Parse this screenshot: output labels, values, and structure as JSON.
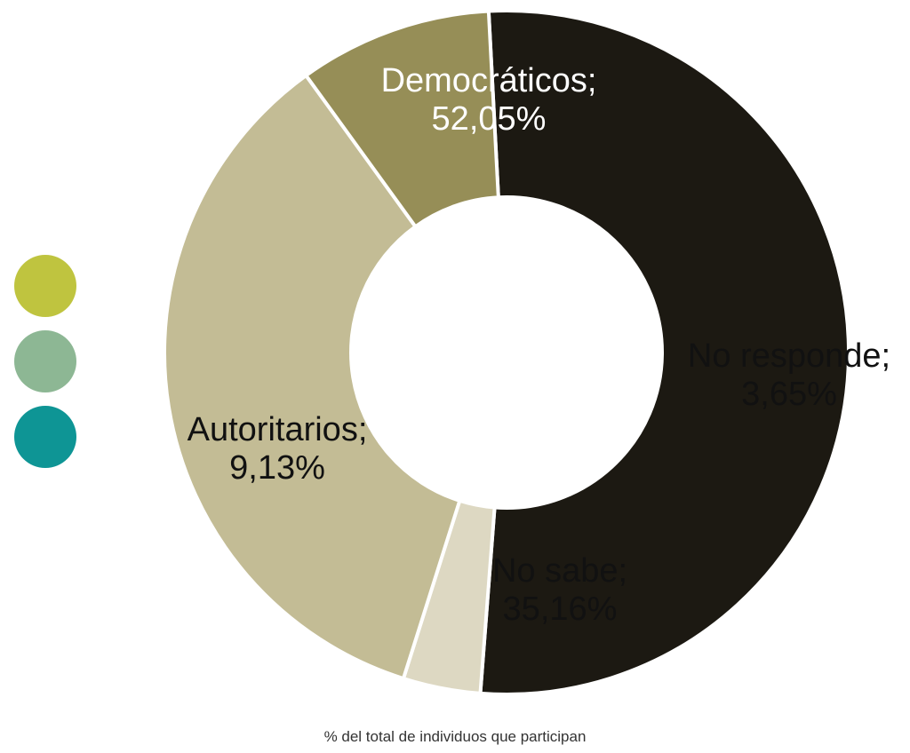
{
  "chart_data": {
    "type": "pie",
    "donut": true,
    "start_angle_deg": 93,
    "title": "",
    "caption": "% del total de individuos que participan",
    "slices": [
      {
        "name": "Democráticos",
        "value": 52.05,
        "label_line1": "Democráticos;",
        "label_line2": "52,05%",
        "color": "#1c1912",
        "label_color": "#ffffff"
      },
      {
        "name": "No responde",
        "value": 3.65,
        "label_line1": "No responde;",
        "label_line2": "3,65%",
        "color": "#ddd8c2",
        "label_color": "#111111"
      },
      {
        "name": "No sabe",
        "value": 35.16,
        "label_line1": "No sabe;",
        "label_line2": "35,16%",
        "color": "#c3bc95",
        "label_color": "#111111"
      },
      {
        "name": "Autoritarios",
        "value": 9.13,
        "label_line1": "Autoritarios;",
        "label_line2": "9,13%",
        "color": "#968e57",
        "label_color": "#111111"
      }
    ],
    "legend": {
      "placement": "left",
      "markers": [
        {
          "color": "#bfc43f"
        },
        {
          "color": "#8db794"
        },
        {
          "color": "#0e9595"
        }
      ]
    }
  }
}
